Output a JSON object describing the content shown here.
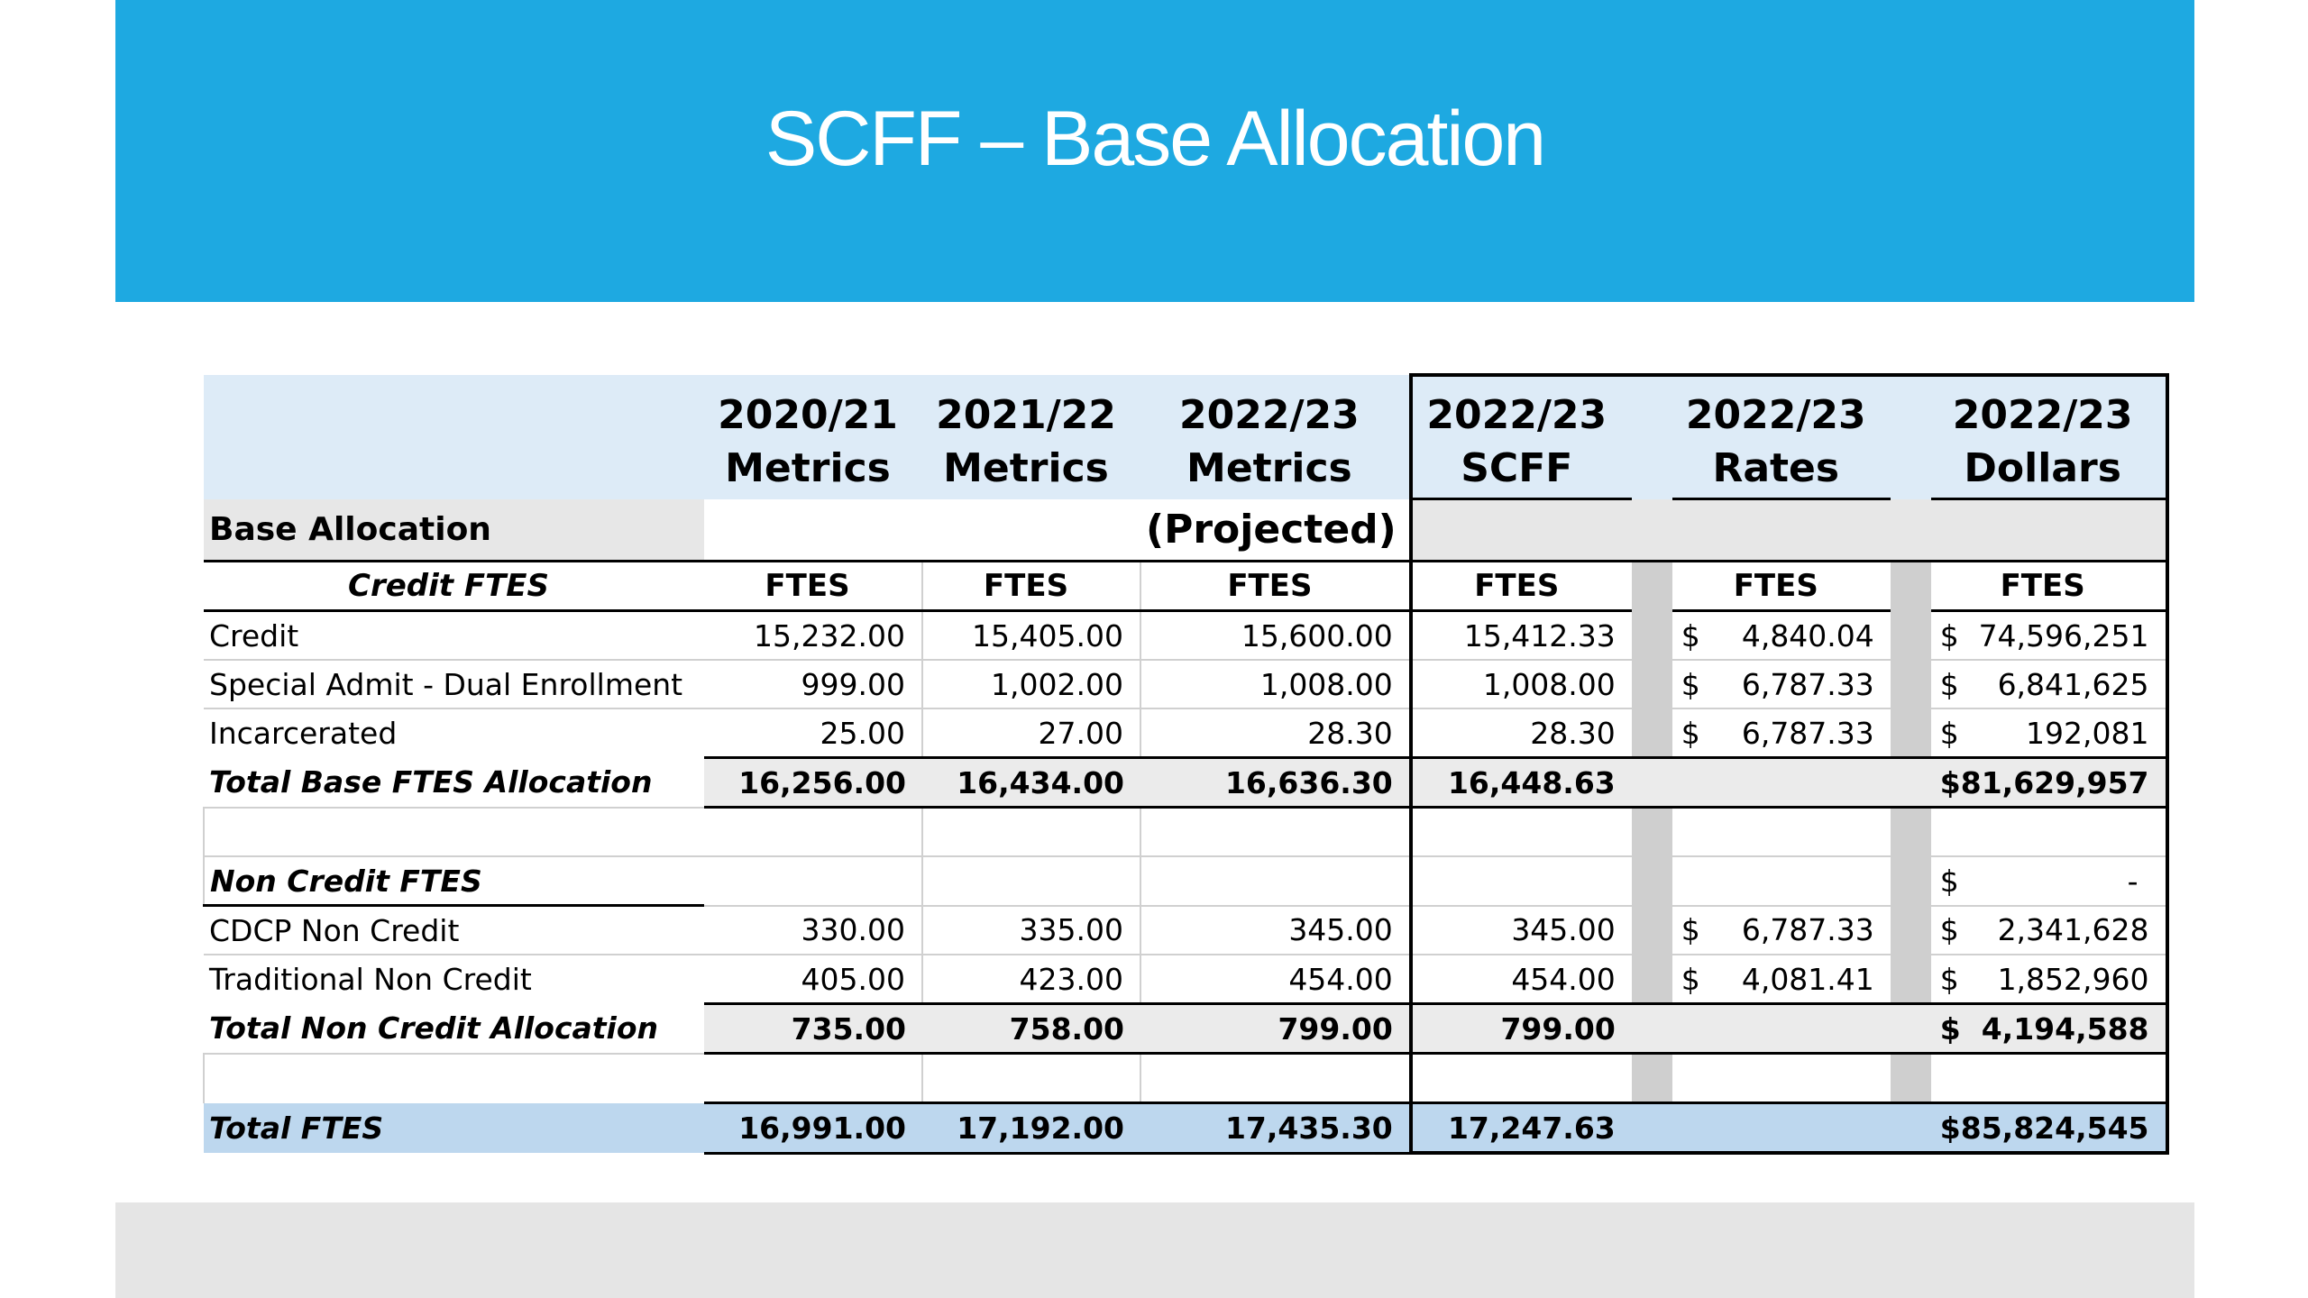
{
  "slide": {
    "title": "SCFF – Base Allocation"
  },
  "table": {
    "header_top": [
      "2020/21",
      "2021/22",
      "2022/23",
      "2022/23",
      "2022/23",
      "2022/23"
    ],
    "header_bottom": [
      "Metrics",
      "Metrics",
      "Metrics",
      "SCFF",
      "Rates",
      "Dollars"
    ],
    "section_label": "Base Allocation",
    "projected_label": "(Projected)",
    "units_label": "FTES",
    "credit": {
      "heading": "Credit FTES",
      "rows": [
        {
          "label": "Credit",
          "m2021": "15,232.00",
          "m2122": "15,405.00",
          "m2223": "15,600.00",
          "scff": "15,412.33",
          "rate_sym": "$",
          "rate": "4,840.04",
          "dollar_sym": "$",
          "dollars": "74,596,251"
        },
        {
          "label": "Special Admit - Dual Enrollment",
          "m2021": "999.00",
          "m2122": "1,002.00",
          "m2223": "1,008.00",
          "scff": "1,008.00",
          "rate_sym": "$",
          "rate": "6,787.33",
          "dollar_sym": "$",
          "dollars": "6,841,625"
        },
        {
          "label": "Incarcerated",
          "m2021": "25.00",
          "m2122": "27.00",
          "m2223": "28.30",
          "scff": "28.30",
          "rate_sym": "$",
          "rate": "6,787.33",
          "dollar_sym": "$",
          "dollars": "192,081"
        }
      ],
      "total": {
        "label": "Total Base FTES Allocation",
        "m2021": "16,256.00",
        "m2122": "16,434.00",
        "m2223": "16,636.30",
        "scff": "16,448.63",
        "dollar_sym": "$",
        "dollars": "81,629,957"
      }
    },
    "noncredit": {
      "heading": "Non Credit FTES",
      "heading_dollar_sym": "$",
      "heading_dollars": "-",
      "rows": [
        {
          "label": "CDCP Non Credit",
          "m2021": "330.00",
          "m2122": "335.00",
          "m2223": "345.00",
          "scff": "345.00",
          "rate_sym": "$",
          "rate": "6,787.33",
          "dollar_sym": "$",
          "dollars": "2,341,628"
        },
        {
          "label": "Traditional Non Credit",
          "m2021": "405.00",
          "m2122": "423.00",
          "m2223": "454.00",
          "scff": "454.00",
          "rate_sym": "$",
          "rate": "4,081.41",
          "dollar_sym": "$",
          "dollars": "1,852,960"
        }
      ],
      "total": {
        "label": "Total Non Credit Allocation",
        "m2021": "735.00",
        "m2122": "758.00",
        "m2223": "799.00",
        "scff": "799.00",
        "dollar_sym": "$",
        "dollars": "4,194,588"
      }
    },
    "grand_total": {
      "label": "Total FTES",
      "m2021": "16,991.00",
      "m2122": "17,192.00",
      "m2223": "17,435.30",
      "scff": "17,247.63",
      "dollar_sym": "$",
      "dollars": "85,824,545"
    }
  }
}
